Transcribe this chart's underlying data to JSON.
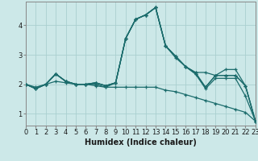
{
  "xlabel": "Humidex (Indice chaleur)",
  "ylabel": "",
  "xlim": [
    0,
    23
  ],
  "ylim": [
    0.6,
    4.8
  ],
  "bg_color": "#cce8e8",
  "line_color": "#1a6b6b",
  "grid_color": "#aacfcf",
  "lines": [
    [
      2.0,
      1.85,
      2.0,
      2.35,
      2.1,
      2.0,
      2.0,
      2.05,
      1.95,
      2.05,
      3.55,
      4.2,
      4.35,
      4.6,
      3.3,
      2.95,
      2.6,
      2.4,
      2.4,
      2.3,
      2.5,
      2.5,
      1.95,
      0.75
    ],
    [
      2.0,
      1.85,
      2.0,
      2.35,
      2.1,
      2.0,
      2.0,
      2.05,
      1.95,
      2.05,
      3.55,
      4.2,
      4.35,
      4.6,
      3.3,
      2.95,
      2.6,
      2.4,
      1.9,
      2.3,
      2.3,
      2.3,
      1.95,
      0.75
    ],
    [
      2.0,
      1.85,
      2.0,
      2.35,
      2.1,
      2.0,
      2.0,
      2.05,
      1.95,
      2.05,
      3.55,
      4.2,
      4.35,
      4.6,
      3.3,
      2.95,
      2.6,
      2.35,
      1.9,
      2.3,
      2.3,
      2.3,
      1.95,
      0.75
    ],
    [
      2.0,
      1.85,
      2.0,
      2.35,
      2.1,
      2.0,
      2.0,
      2.0,
      1.9,
      2.05,
      3.55,
      4.2,
      4.35,
      4.6,
      3.3,
      2.9,
      2.6,
      2.35,
      1.85,
      2.2,
      2.2,
      2.2,
      1.6,
      0.75
    ],
    [
      2.0,
      1.9,
      2.0,
      2.1,
      2.05,
      2.0,
      2.0,
      1.95,
      1.9,
      1.9,
      1.9,
      1.9,
      1.9,
      1.9,
      1.8,
      1.75,
      1.65,
      1.55,
      1.45,
      1.35,
      1.25,
      1.15,
      1.05,
      0.75
    ]
  ],
  "xticks": [
    0,
    1,
    2,
    3,
    4,
    5,
    6,
    7,
    8,
    9,
    10,
    11,
    12,
    13,
    14,
    15,
    16,
    17,
    18,
    19,
    20,
    21,
    22,
    23
  ],
  "yticks": [
    1,
    2,
    3,
    4
  ],
  "tick_fontsize": 6,
  "label_fontsize": 7,
  "linewidth": 0.9,
  "markersize": 3.5
}
